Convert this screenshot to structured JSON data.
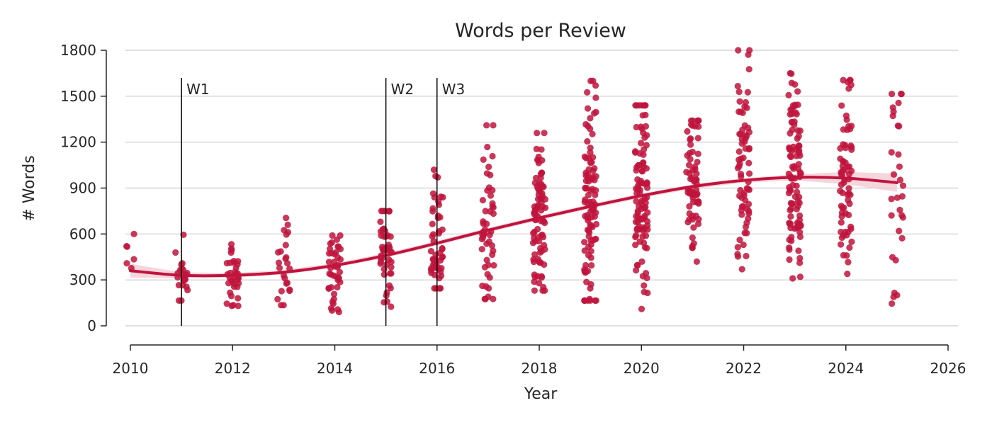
{
  "chart_data": {
    "type": "scatter",
    "title": "Words per Review",
    "xlabel": "Year",
    "ylabel": "# Words",
    "xlim": [
      2010,
      2026
    ],
    "ylim": [
      0,
      1800
    ],
    "x_ticks": [
      2010,
      2012,
      2014,
      2016,
      2018,
      2020,
      2022,
      2024,
      2026
    ],
    "y_ticks": [
      0,
      300,
      600,
      900,
      1200,
      1500,
      1800
    ],
    "grid": "horizontal",
    "colors": {
      "points": "#c0143c",
      "trend": "#c0143c",
      "band": "#f2c4cf",
      "vlines": "#000000"
    },
    "annotations": [
      {
        "label": "W1",
        "x": 2011
      },
      {
        "label": "W2",
        "x": 2015
      },
      {
        "label": "W3",
        "x": 2016
      }
    ],
    "trend_line": {
      "x": [
        2010,
        2011,
        2012,
        2013,
        2014,
        2015,
        2016,
        2017,
        2018,
        2019,
        2020,
        2021,
        2022,
        2023,
        2024,
        2025
      ],
      "y": [
        360,
        330,
        330,
        350,
        395,
        460,
        540,
        625,
        705,
        780,
        850,
        910,
        950,
        970,
        965,
        935
      ],
      "band": [
        45,
        20,
        15,
        15,
        15,
        15,
        15,
        15,
        15,
        15,
        15,
        15,
        15,
        20,
        40,
        60
      ]
    },
    "points": [
      {
        "year": 2010,
        "count": 6,
        "min": 230,
        "max": 600,
        "outliers": [
          600,
          520
        ]
      },
      {
        "year": 2011,
        "count": 22,
        "min": 165,
        "max": 595,
        "outliers": [
          595,
          165
        ]
      },
      {
        "year": 2012,
        "count": 35,
        "min": 130,
        "max": 590,
        "outliers": [
          130
        ]
      },
      {
        "year": 2013,
        "count": 24,
        "min": 135,
        "max": 705,
        "outliers": [
          705,
          625
        ]
      },
      {
        "year": 2014,
        "count": 42,
        "min": 90,
        "max": 590,
        "outliers": [
          90,
          100
        ]
      },
      {
        "year": 2015,
        "count": 48,
        "min": 125,
        "max": 750,
        "outliers": [
          125,
          750
        ]
      },
      {
        "year": 2016,
        "count": 52,
        "min": 245,
        "max": 1020,
        "outliers": [
          1020,
          970,
          840
        ]
      },
      {
        "year": 2017,
        "count": 50,
        "min": 175,
        "max": 1310,
        "outliers": [
          1310,
          175,
          190
        ]
      },
      {
        "year": 2018,
        "count": 85,
        "min": 230,
        "max": 1260,
        "outliers": [
          1260,
          230
        ]
      },
      {
        "year": 2019,
        "count": 100,
        "min": 165,
        "max": 1600,
        "outliers": [
          1600,
          1570,
          1420,
          165
        ]
      },
      {
        "year": 2020,
        "count": 100,
        "min": 110,
        "max": 1440,
        "outliers": [
          110,
          215,
          1440
        ]
      },
      {
        "year": 2021,
        "count": 70,
        "min": 280,
        "max": 1340,
        "outliers": [
          1340
        ]
      },
      {
        "year": 2022,
        "count": 70,
        "min": 370,
        "max": 1800,
        "outliers": [
          1800,
          1460
        ]
      },
      {
        "year": 2023,
        "count": 100,
        "min": 310,
        "max": 1650,
        "outliers": [
          1650,
          320
        ]
      },
      {
        "year": 2024,
        "count": 70,
        "min": 270,
        "max": 1605,
        "outliers": [
          1605,
          1550
        ]
      },
      {
        "year": 2025,
        "count": 30,
        "min": 145,
        "max": 1515,
        "outliers": [
          1515,
          145,
          200,
          215
        ]
      }
    ]
  }
}
